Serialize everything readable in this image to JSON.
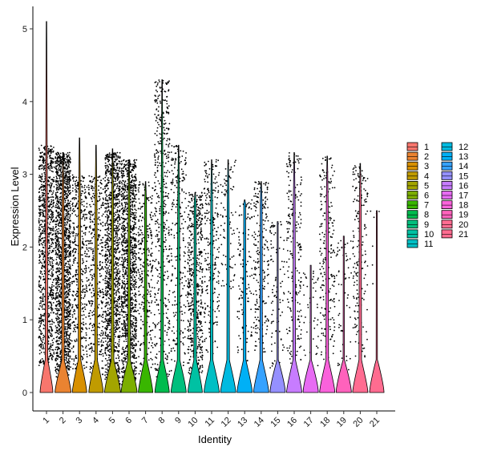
{
  "chart_data": {
    "type": "violin",
    "title": "",
    "xlabel": "Identity",
    "ylabel": "Expression Level",
    "ylim": [
      -0.25,
      5.25
    ],
    "yticks": [
      0,
      1,
      2,
      3,
      4,
      5
    ],
    "grid": false,
    "legend_position": "right",
    "legend_columns": 2,
    "categories": [
      "1",
      "2",
      "3",
      "4",
      "5",
      "6",
      "7",
      "8",
      "9",
      "10",
      "11",
      "12",
      "13",
      "14",
      "15",
      "16",
      "17",
      "18",
      "19",
      "20",
      "21"
    ],
    "colors": [
      "#F8766D",
      "#EA8331",
      "#D89000",
      "#C09B00",
      "#A3A500",
      "#7CAE00",
      "#39B600",
      "#00BB4E",
      "#00BF7D",
      "#00C1A3",
      "#00BFC4",
      "#00BAE0",
      "#00B0F6",
      "#35A2FF",
      "#9590FF",
      "#C77CFF",
      "#E76BF3",
      "#FA62DB",
      "#FF62BC",
      "#FF6C91",
      "#FF6C90"
    ],
    "series": [
      {
        "name": "1",
        "max": 5.1,
        "upper_min": 0.35,
        "upper_max": 3.4,
        "n_points": 950,
        "density": "high"
      },
      {
        "name": "2",
        "max": 3.3,
        "upper_min": 0.2,
        "upper_max": 3.3,
        "n_points": 1500,
        "density": "very-high"
      },
      {
        "name": "3",
        "max": 3.5,
        "upper_min": 0.3,
        "upper_max": 3.0,
        "n_points": 450,
        "density": "medium"
      },
      {
        "name": "4",
        "max": 3.4,
        "upper_min": 0.2,
        "upper_max": 3.0,
        "n_points": 400,
        "density": "medium"
      },
      {
        "name": "5",
        "max": 3.35,
        "upper_min": 0.1,
        "upper_max": 3.3,
        "n_points": 1200,
        "density": "very-high"
      },
      {
        "name": "6",
        "max": 3.2,
        "upper_min": 0.1,
        "upper_max": 3.2,
        "n_points": 1200,
        "density": "very-high"
      },
      {
        "name": "7",
        "max": 2.9,
        "upper_min": 0.25,
        "upper_max": 2.9,
        "n_points": 300,
        "density": "medium"
      },
      {
        "name": "8",
        "max": 4.3,
        "upper_min": 0.2,
        "upper_max": 4.3,
        "n_points": 450,
        "density": "medium"
      },
      {
        "name": "9",
        "max": 3.4,
        "upper_min": 0.3,
        "upper_max": 3.4,
        "n_points": 250,
        "density": "low"
      },
      {
        "name": "10",
        "max": 2.75,
        "upper_min": 0.2,
        "upper_max": 2.75,
        "n_points": 550,
        "density": "medium"
      },
      {
        "name": "11",
        "max": 3.2,
        "upper_min": 0.5,
        "upper_max": 3.2,
        "n_points": 250,
        "density": "low"
      },
      {
        "name": "12",
        "max": 3.2,
        "upper_min": 1.4,
        "upper_max": 3.2,
        "n_points": 90,
        "density": "low"
      },
      {
        "name": "13",
        "max": 2.65,
        "upper_min": 0.4,
        "upper_max": 2.65,
        "n_points": 120,
        "density": "low"
      },
      {
        "name": "14",
        "max": 2.9,
        "upper_min": 0.5,
        "upper_max": 2.9,
        "n_points": 220,
        "density": "low"
      },
      {
        "name": "15",
        "max": 2.35,
        "upper_min": 0.3,
        "upper_max": 2.35,
        "n_points": 90,
        "density": "low"
      },
      {
        "name": "16",
        "max": 3.3,
        "upper_min": 0.4,
        "upper_max": 3.3,
        "n_points": 220,
        "density": "low"
      },
      {
        "name": "17",
        "max": 1.75,
        "upper_min": 0.3,
        "upper_max": 1.75,
        "n_points": 40,
        "density": "low"
      },
      {
        "name": "18",
        "max": 3.25,
        "upper_min": 0.4,
        "upper_max": 3.25,
        "n_points": 220,
        "density": "low"
      },
      {
        "name": "19",
        "max": 2.15,
        "upper_min": 0.3,
        "upper_max": 2.15,
        "n_points": 60,
        "density": "low"
      },
      {
        "name": "20",
        "max": 3.15,
        "upper_min": 0.4,
        "upper_max": 3.15,
        "n_points": 180,
        "density": "low"
      },
      {
        "name": "21",
        "max": 2.5,
        "upper_min": 1.3,
        "upper_max": 2.5,
        "n_points": 4,
        "density": "very-low"
      }
    ]
  }
}
